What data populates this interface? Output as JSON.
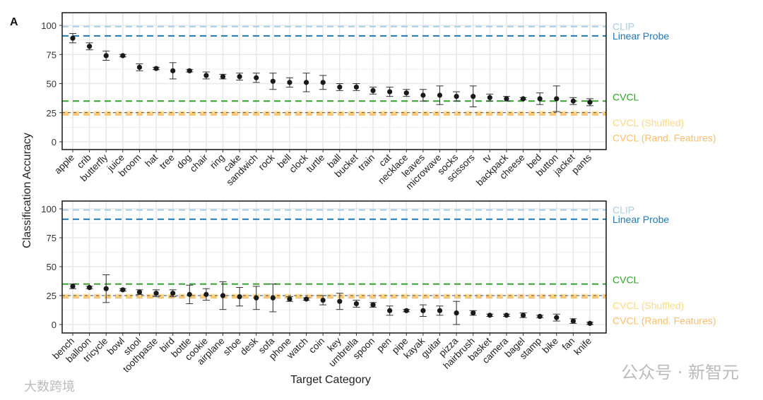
{
  "panel_label": "A",
  "watermarks": [
    "公众号 · 新智元",
    "大数跨境"
  ],
  "colors": {
    "CLIP": "#a6cee3",
    "Linear Probe": "#1f78b4",
    "CVCL": "#33a02c",
    "CVCL (Shuffled)": "#fdd98a",
    "CVCL (Rand. Features)": "#fdbf6f",
    "point": "#1a1a1a"
  },
  "chart_data": [
    {
      "type": "scatter",
      "title": "",
      "xlabel": "",
      "ylabel": "Classification Accuracy",
      "ylim": [
        0,
        100
      ],
      "yticks": [
        0,
        25,
        50,
        75,
        100
      ],
      "grid": true,
      "categories": [
        "apple",
        "crib",
        "butterfly",
        "juice",
        "broom",
        "hat",
        "tree",
        "dog",
        "chair",
        "ring",
        "cake",
        "sandwich",
        "rock",
        "bell",
        "clock",
        "turtle",
        "ball",
        "bucket",
        "train",
        "cat",
        "necklace",
        "leaves",
        "microwave",
        "socks",
        "scissors",
        "tv",
        "backpack",
        "cheese",
        "bed",
        "button",
        "jacket",
        "pants"
      ],
      "values": [
        89,
        82,
        74,
        74,
        64,
        63,
        61,
        61,
        57,
        56,
        56,
        55,
        52,
        51,
        51,
        51,
        47,
        47,
        44,
        43,
        42,
        40,
        40,
        39,
        39,
        38,
        37,
        37,
        37,
        37,
        35,
        34
      ],
      "errors": [
        4,
        3,
        4,
        1,
        3,
        1,
        7,
        1,
        3,
        2,
        3,
        4,
        7,
        4,
        8,
        6,
        3,
        3,
        3,
        4,
        3,
        5,
        8,
        4,
        9,
        3,
        2,
        1,
        5,
        11,
        3,
        3
      ],
      "reference_lines": [
        {
          "label": "CLIP",
          "value": 99
        },
        {
          "label": "Linear Probe",
          "value": 91
        },
        {
          "label": "CVCL",
          "value": 35
        },
        {
          "label": "CVCL (Shuffled)",
          "value": 25
        },
        {
          "label": "CVCL (Rand. Features)",
          "value": 24
        }
      ]
    },
    {
      "type": "scatter",
      "title": "",
      "xlabel": "Target Category",
      "ylabel": "Classification Accuracy",
      "ylim": [
        0,
        100
      ],
      "yticks": [
        0,
        25,
        50,
        75,
        100
      ],
      "grid": true,
      "categories": [
        "bench",
        "balloon",
        "tricycle",
        "bowl",
        "stool",
        "toothpaste",
        "bird",
        "bottle",
        "cookie",
        "airplane",
        "shoe",
        "desk",
        "sofa",
        "phone",
        "watch",
        "coin",
        "key",
        "umbrella",
        "spoon",
        "pen",
        "pipe",
        "kayak",
        "guitar",
        "pizza",
        "hairbrush",
        "basket",
        "camera",
        "bagel",
        "stamp",
        "bike",
        "fan",
        "knife"
      ],
      "values": [
        33,
        32,
        31,
        30,
        28,
        27,
        27,
        26,
        26,
        25,
        24,
        23,
        23,
        22,
        22,
        21,
        20,
        18,
        17,
        12,
        12,
        12,
        12,
        10,
        10,
        8,
        8,
        8,
        7,
        6,
        3,
        1
      ],
      "errors": [
        2,
        1,
        12,
        1,
        2,
        3,
        3,
        8,
        5,
        12,
        8,
        10,
        12,
        2,
        1,
        4,
        7,
        3,
        2,
        4,
        1,
        5,
        4,
        10,
        2,
        1,
        1,
        2,
        1,
        3,
        2,
        1
      ],
      "reference_lines": [
        {
          "label": "CLIP",
          "value": 99
        },
        {
          "label": "Linear Probe",
          "value": 91
        },
        {
          "label": "CVCL",
          "value": 35
        },
        {
          "label": "CVCL (Shuffled)",
          "value": 25
        },
        {
          "label": "CVCL (Rand. Features)",
          "value": 24
        }
      ]
    }
  ]
}
